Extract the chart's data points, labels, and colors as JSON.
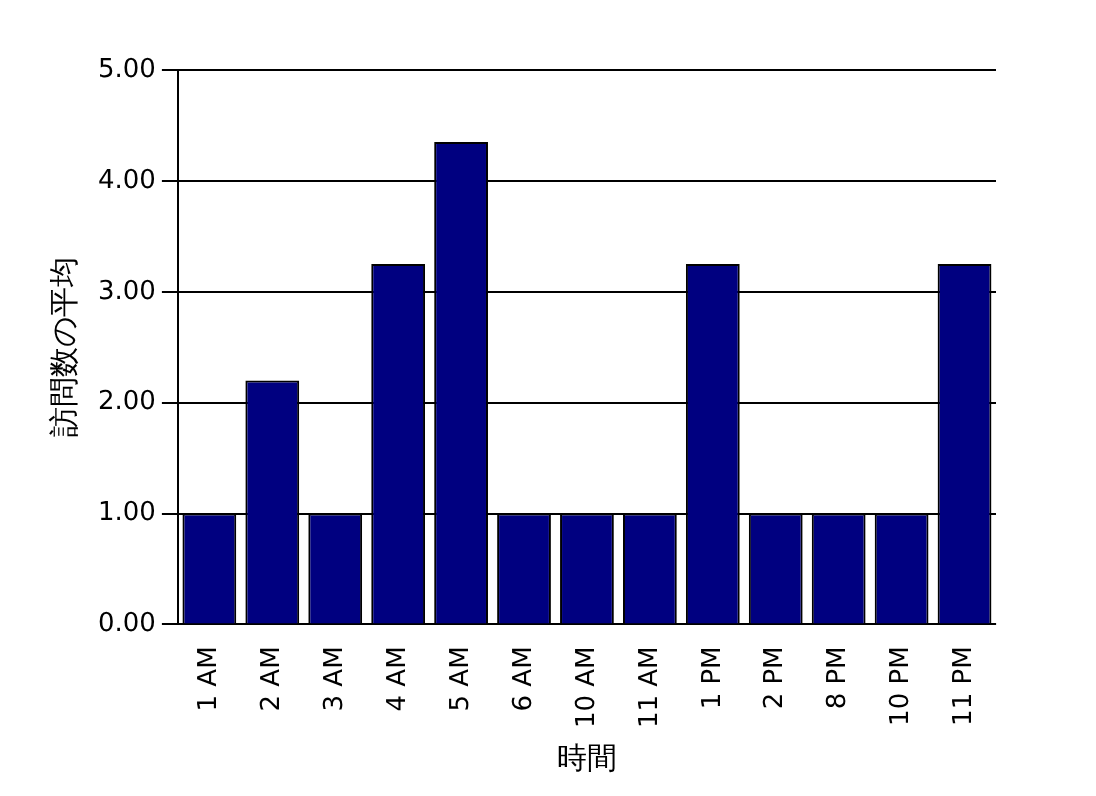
{
  "chart_data": {
    "type": "bar",
    "xlabel": "時間",
    "ylabel": "訪問数の平均",
    "categories": [
      "1 AM",
      "2 AM",
      "3 AM",
      "4 AM",
      "5 AM",
      "6 AM",
      "10 AM",
      "11 AM",
      "1 PM",
      "2 PM",
      "8 PM",
      "10 PM",
      "11 PM"
    ],
    "values": [
      1,
      2.2,
      1,
      3.25,
      4.35,
      1,
      1,
      1,
      3.25,
      1,
      1,
      1,
      3.25
    ],
    "color": "#000080",
    "ylim": [
      0,
      5
    ],
    "yticks": [
      {
        "value": 0,
        "label": "0.00"
      },
      {
        "value": 1,
        "label": "1.00"
      },
      {
        "value": 2,
        "label": "2.00"
      },
      {
        "value": 3,
        "label": "3.00"
      },
      {
        "value": 4,
        "label": "4.00"
      },
      {
        "value": 5,
        "label": "5.00"
      }
    ],
    "grid": "y"
  }
}
